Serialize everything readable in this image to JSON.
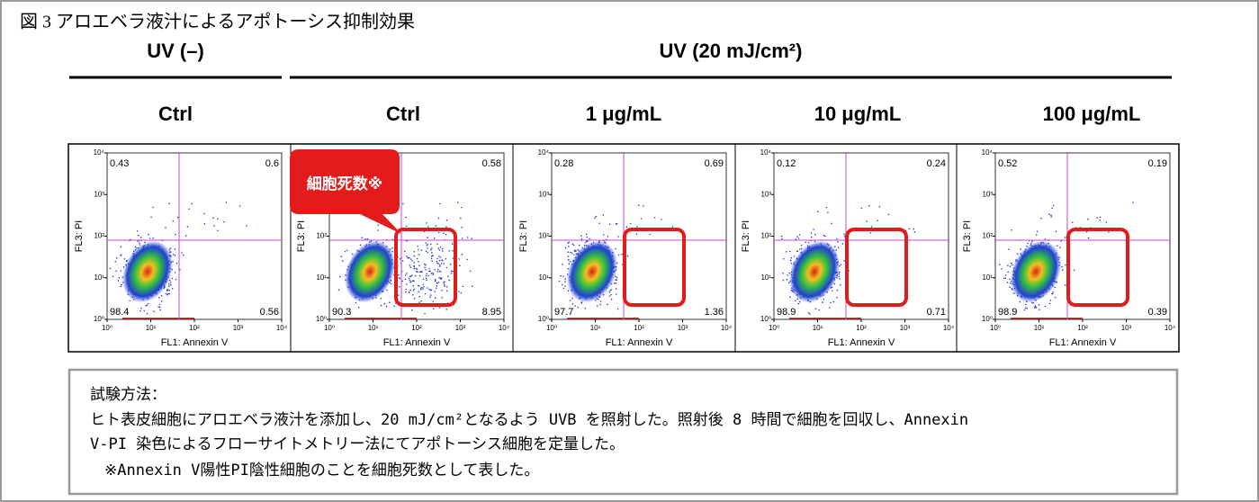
{
  "title": "図 3 アロエベラ液汁によるアポトーシス抑制効果",
  "groups": [
    {
      "label": "UV (–)"
    },
    {
      "label": "UV (20 mJ/cm²)"
    }
  ],
  "callout": "細胞死数※",
  "axes": {
    "x_label": "FL1: Annexin V",
    "y_label": "FL3: PI",
    "tick_labels": [
      "10⁰",
      "10¹",
      "10²",
      "10³",
      "10⁴"
    ]
  },
  "panels": [
    {
      "label": "Ctrl",
      "upper_left": "0.43",
      "upper_right": "0.6",
      "lower_left": "98.4",
      "lower_right": "0.56"
    },
    {
      "label": "Ctrl",
      "upper_right": "0.58",
      "lower_left": "90.3",
      "lower_right": "8.95"
    },
    {
      "label": "1 μg/mL",
      "upper_left": "0.28",
      "upper_right": "0.69",
      "lower_left": "97.7",
      "lower_right": "1.36"
    },
    {
      "label": "10 μg/mL",
      "upper_left": "0.12",
      "upper_right": "0.24",
      "lower_left": "98.9",
      "lower_right": "0.71"
    },
    {
      "label": "100 μg/mL",
      "upper_left": "0.52",
      "upper_right": "0.19",
      "lower_left": "98.9",
      "lower_right": "0.39"
    }
  ],
  "method": {
    "heading": "試験方法：",
    "lines": [
      "ヒト表皮細胞にアロエベラ液汁を添加し、20 mJ/cm²となるよう UVB を照射した。照射後 8 時間で細胞を回収し、Annexin",
      "V-PI 染色によるフローサイトメトリー法にてアポトーシス細胞を定量した。"
    ],
    "note": "※Annexin V陽性PI陰性細胞のことを細胞死数として表した。"
  }
}
